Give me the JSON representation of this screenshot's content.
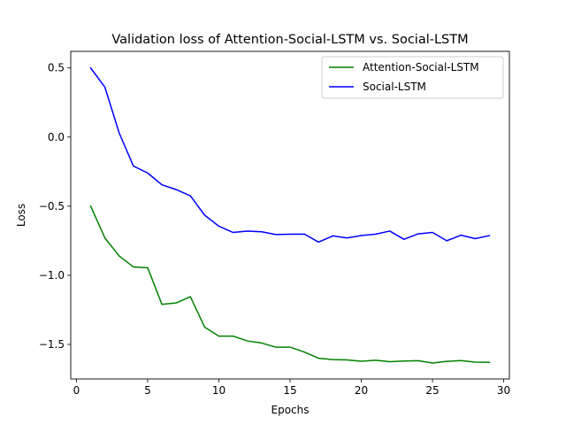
{
  "chart_data": {
    "type": "line",
    "title": "Validation loss of Attention-Social-LSTM vs. Social-LSTM",
    "xlabel": "Epochs",
    "ylabel": "Loss",
    "xlim": [
      -0.4,
      30.4
    ],
    "ylim": [
      -1.75,
      0.62
    ],
    "xticks": [
      0,
      5,
      10,
      15,
      20,
      25,
      30
    ],
    "yticks": [
      0.5,
      0.0,
      -0.5,
      -1.0,
      -1.5
    ],
    "ytick_labels": [
      "0.5",
      "0.0",
      "−0.5",
      "−1.0",
      "−1.5"
    ],
    "legend_position": "top-right",
    "x": [
      1,
      2,
      3,
      4,
      5,
      6,
      7,
      8,
      9,
      10,
      11,
      12,
      13,
      14,
      15,
      16,
      17,
      18,
      19,
      20,
      21,
      22,
      23,
      24,
      25,
      26,
      27,
      28,
      29
    ],
    "series": [
      {
        "name": "Attention-Social-LSTM",
        "color": "#008000",
        "values": [
          -0.5,
          -0.73,
          -0.86,
          -0.94,
          -0.945,
          -1.21,
          -1.2,
          -1.155,
          -1.375,
          -1.44,
          -1.44,
          -1.475,
          -1.49,
          -1.52,
          -1.52,
          -1.555,
          -1.6,
          -1.61,
          -1.612,
          -1.622,
          -1.615,
          -1.625,
          -1.62,
          -1.618,
          -1.635,
          -1.623,
          -1.617,
          -1.628,
          -1.63
        ]
      },
      {
        "name": "Social-LSTM",
        "color": "#0000ff",
        "values": [
          0.5,
          0.36,
          0.03,
          -0.21,
          -0.26,
          -0.345,
          -0.38,
          -0.425,
          -0.565,
          -0.645,
          -0.69,
          -0.68,
          -0.685,
          -0.705,
          -0.703,
          -0.702,
          -0.76,
          -0.715,
          -0.73,
          -0.712,
          -0.703,
          -0.68,
          -0.74,
          -0.7,
          -0.69,
          -0.75,
          -0.71,
          -0.735,
          -0.713
        ]
      }
    ]
  }
}
